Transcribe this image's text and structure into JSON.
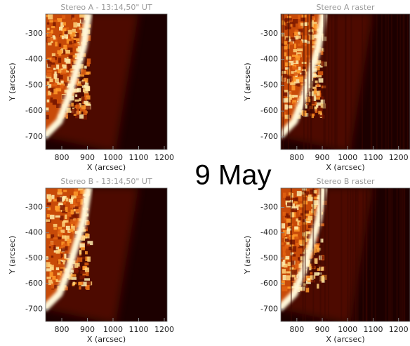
{
  "chart_data": [
    {
      "type": "image",
      "title": "Stereo A - 13:14,50\" UT",
      "xlabel": "X (arcsec)",
      "ylabel": "Y (arcsec)",
      "xlim": [
        737,
        1211
      ],
      "ylim": [
        -749,
        -224
      ],
      "xticks": [
        800,
        900,
        1000,
        1100,
        1200
      ],
      "yticks": [
        -700,
        -600,
        -500,
        -400,
        -300
      ]
    },
    {
      "type": "image",
      "title": "Stereo A raster",
      "xlabel": "X (arcsec)",
      "ylabel": "Y (arcsec)",
      "xlim": [
        737,
        1245
      ],
      "ylim": [
        -749,
        -224
      ],
      "xticks": [
        800,
        900,
        1000,
        1100,
        1200
      ],
      "yticks": [
        -700,
        -600,
        -500,
        -400,
        -300
      ]
    },
    {
      "type": "image",
      "title": "Stereo B - 13:14,50\" UT",
      "xlabel": "X (arcsec)",
      "ylabel": "Y (arcsec)",
      "xlim": [
        737,
        1211
      ],
      "ylim": [
        -749,
        -224
      ],
      "xticks": [
        800,
        900,
        1000,
        1100,
        1200
      ],
      "yticks": [
        -700,
        -600,
        -500,
        -400,
        -300
      ]
    },
    {
      "type": "image",
      "title": "Stereo B raster",
      "xlabel": "X (arcsec)",
      "ylabel": "Y (arcsec)",
      "xlim": [
        737,
        1245
      ],
      "ylim": [
        -749,
        -224
      ],
      "xticks": [
        800,
        900,
        1000,
        1100,
        1200
      ],
      "yticks": [
        -700,
        -600,
        -500,
        -400,
        -300
      ]
    }
  ],
  "annotation": "9 May"
}
